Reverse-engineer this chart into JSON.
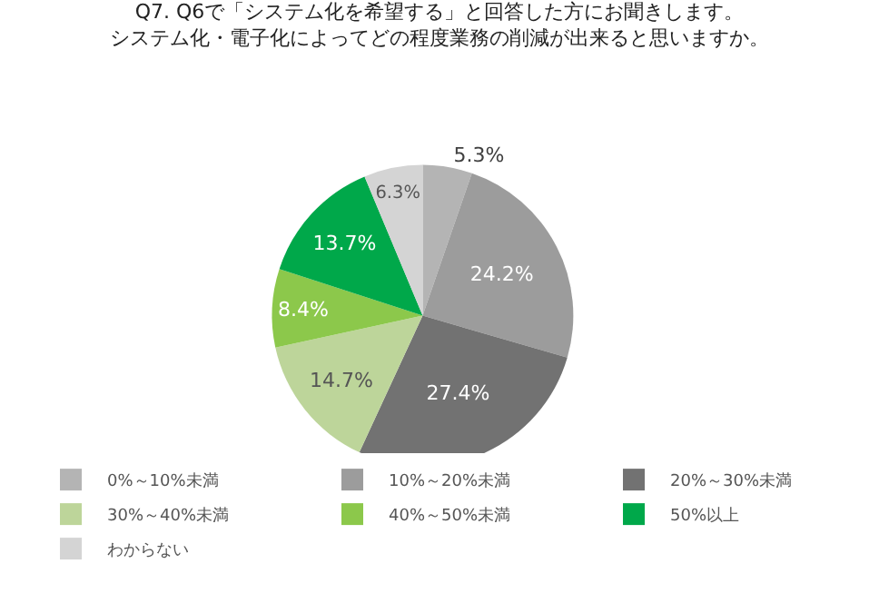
{
  "chart_data": {
    "type": "pie",
    "title": "Q7. Q6で「システム化を希望する」と回答した方にお聞きします。",
    "subtitle": "システム化・電子化によってどの程度業務の削減が出来ると思いますか。",
    "categories": [
      "0%～10%未満",
      "10%～20%未満",
      "20%～30%未満",
      "30%～40%未満",
      "40%～50%未満",
      "50%以上",
      "わからない"
    ],
    "values": [
      5.3,
      24.2,
      27.4,
      14.7,
      8.4,
      13.7,
      6.3
    ],
    "value_labels": [
      "5.3%",
      "24.2%",
      "27.4%",
      "14.7%",
      "8.4%",
      "13.7%",
      "6.3%"
    ],
    "colors": [
      "#b4b4b4",
      "#9c9c9c",
      "#727272",
      "#bdd59a",
      "#8cc84b",
      "#00a84a",
      "#d4d4d4"
    ],
    "legend": "bottom"
  }
}
